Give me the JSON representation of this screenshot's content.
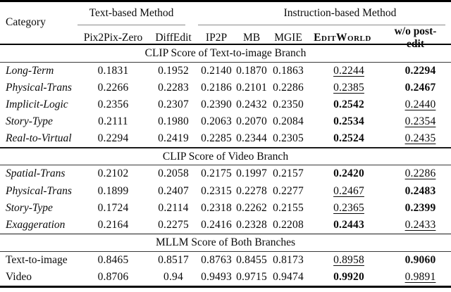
{
  "table": {
    "header": {
      "category": "Category",
      "groups": [
        {
          "label": "Text-based Method"
        },
        {
          "label": "Instruction-based Method"
        }
      ],
      "columns": [
        "Pix2Pix-Zero",
        "DiffEdit",
        "IP2P",
        "MB",
        "MGIE",
        "EditWorld",
        "w/o post-edit"
      ]
    },
    "sections": [
      {
        "title": "CLIP Score of Text-to-image Branch",
        "italic_categories": true,
        "rows": [
          {
            "category": "Long-Term",
            "values": [
              "0.1831",
              "0.1952",
              "0.2140",
              "0.1870",
              "0.1863",
              "0.2244",
              "0.2294"
            ],
            "second": 5,
            "best": 6
          },
          {
            "category": "Physical-Trans",
            "values": [
              "0.2266",
              "0.2283",
              "0.2186",
              "0.2101",
              "0.2286",
              "0.2385",
              "0.2467"
            ],
            "second": 5,
            "best": 6
          },
          {
            "category": "Implicit-Logic",
            "values": [
              "0.2356",
              "0.2307",
              "0.2390",
              "0.2432",
              "0.2350",
              "0.2542",
              "0.2440"
            ],
            "best": 5,
            "second": 6
          },
          {
            "category": "Story-Type",
            "values": [
              "0.2111",
              "0.1980",
              "0.2063",
              "0.2070",
              "0.2084",
              "0.2534",
              "0.2354"
            ],
            "best": 5,
            "second": 6
          },
          {
            "category": "Real-to-Virtual",
            "values": [
              "0.2294",
              "0.2419",
              "0.2285",
              "0.2344",
              "0.2305",
              "0.2524",
              "0.2435"
            ],
            "best": 5,
            "second": 6
          }
        ]
      },
      {
        "title": "CLIP Score of Video Branch",
        "italic_categories": true,
        "rows": [
          {
            "category": "Spatial-Trans",
            "values": [
              "0.2102",
              "0.2058",
              "0.2175",
              "0.1997",
              "0.2157",
              "0.2420",
              "0.2286"
            ],
            "best": 5,
            "second": 6
          },
          {
            "category": "Physical-Trans",
            "values": [
              "0.1899",
              "0.2407",
              "0.2315",
              "0.2278",
              "0.2277",
              "0.2467",
              "0.2483"
            ],
            "second": 5,
            "best": 6
          },
          {
            "category": "Story-Type",
            "values": [
              "0.1724",
              "0.2114",
              "0.2318",
              "0.2262",
              "0.2155",
              "0.2365",
              "0.2399"
            ],
            "second": 5,
            "best": 6
          },
          {
            "category": "Exaggeration",
            "values": [
              "0.2164",
              "0.2275",
              "0.2416",
              "0.2328",
              "0.2208",
              "0.2443",
              "0.2433"
            ],
            "best": 5,
            "second": 6
          }
        ]
      },
      {
        "title": "MLLM Score of Both Branches",
        "italic_categories": false,
        "rows": [
          {
            "category": "Text-to-image",
            "values": [
              "0.8465",
              "0.8517",
              "0.8763",
              "0.8455",
              "0.8173",
              "0.8958",
              "0.9060"
            ],
            "second": 5,
            "best": 6
          },
          {
            "category": "Video",
            "values": [
              "0.8706",
              "0.94",
              "0.9493",
              "0.9715",
              "0.9474",
              "0.9920",
              "0.9891"
            ],
            "best": 5,
            "second": 6
          }
        ]
      }
    ]
  }
}
